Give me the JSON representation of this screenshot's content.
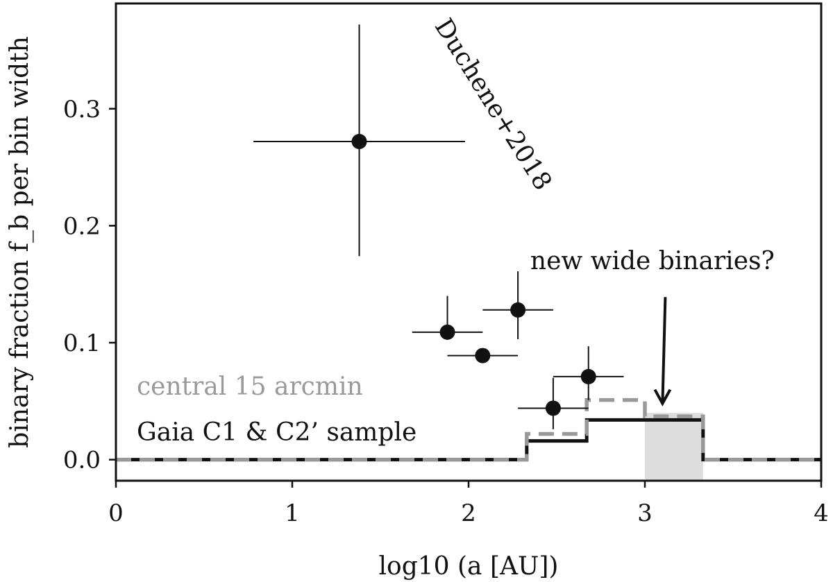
{
  "chart_data": {
    "type": "step",
    "xlabel": "log10 (a [AU])",
    "ylabel": "binary fraction f_b per bin width",
    "xlim": [
      0,
      4
    ],
    "ylim": [
      -0.018,
      0.39
    ],
    "xticks": [
      "0",
      "1",
      "2",
      "3",
      "4"
    ],
    "yticks": [
      "0.0",
      "0.1",
      "0.2",
      "0.3"
    ],
    "legend": {
      "placement": "lower-left",
      "entries": [
        {
          "label": "central 15 arcmin",
          "color": "#999999"
        },
        {
          "label": "Gaia C1 & C2’ sample",
          "color": "#111111"
        }
      ]
    },
    "series": [
      {
        "name": "Duchene+2018",
        "kind": "errorbar",
        "color": "#111111",
        "points": [
          {
            "x": 1.38,
            "y": 0.272,
            "xerr": [
              0.6,
              0.6
            ],
            "yerr": [
              0.098,
              0.1
            ]
          },
          {
            "x": 1.88,
            "y": 0.109,
            "xerr": [
              0.2,
              0.2
            ],
            "yerr": [
              0.0,
              0.031
            ]
          },
          {
            "x": 2.08,
            "y": 0.089,
            "xerr": [
              0.2,
              0.2
            ],
            "yerr": [
              0.0,
              0.0
            ]
          },
          {
            "x": 2.28,
            "y": 0.128,
            "xerr": [
              0.2,
              0.2
            ],
            "yerr": [
              0.025,
              0.033
            ]
          },
          {
            "x": 2.48,
            "y": 0.044,
            "xerr": [
              0.2,
              0.2
            ],
            "yerr": [
              0.018,
              0.026
            ]
          },
          {
            "x": 2.68,
            "y": 0.071,
            "xerr": [
              0.2,
              0.2
            ],
            "yerr": [
              0.02,
              0.026
            ]
          }
        ]
      },
      {
        "name": "Gaia C1 & C2’ sample",
        "kind": "step",
        "color": "#111111",
        "style": "solid",
        "edges": [
          0,
          2.33,
          2.67,
          3.0,
          3.33,
          4.0
        ],
        "values": [
          0.0,
          0.016,
          0.034,
          0.034,
          0.0
        ]
      },
      {
        "name": "central 15 arcmin",
        "kind": "step",
        "color": "#999999",
        "style": "dashed",
        "edges": [
          0,
          2.33,
          2.67,
          3.0,
          3.33,
          4.0
        ],
        "values": [
          0.0,
          0.022,
          0.051,
          0.037,
          0.0
        ]
      }
    ],
    "shaded_region": {
      "x": [
        3.0,
        3.33
      ],
      "y": [
        -0.018,
        0.04
      ],
      "color": "#dddddd"
    },
    "annotations": [
      {
        "text": "Duchene+2018",
        "x": 2.1,
        "y": 0.3,
        "rotation": 58
      },
      {
        "text": "new wide binaries?",
        "x": 2.35,
        "y": 0.163,
        "arrow_to": [
          3.1,
          0.048
        ]
      }
    ],
    "grid": false
  }
}
